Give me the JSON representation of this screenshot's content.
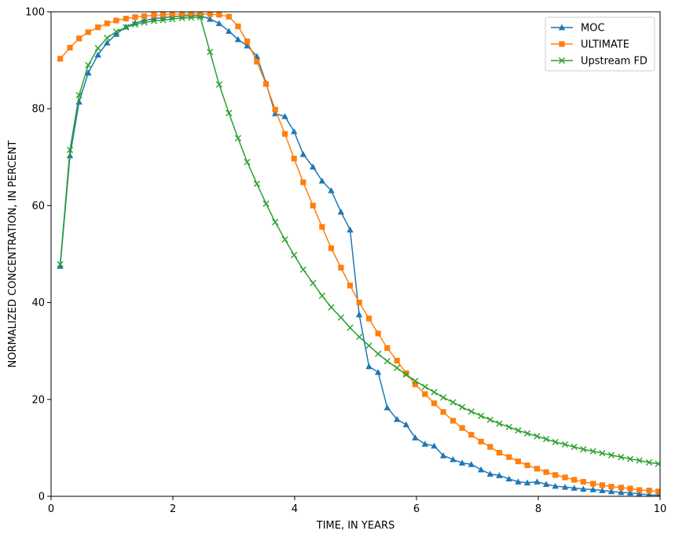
{
  "chart_data": {
    "type": "line",
    "xlabel": "TIME, IN YEARS",
    "ylabel": "NORMALIZED CONCENTRATION, IN PERCENT",
    "xlim": [
      0,
      10
    ],
    "ylim": [
      0,
      100
    ],
    "xticks": [
      0,
      2,
      4,
      6,
      8,
      10
    ],
    "yticks": [
      0,
      20,
      40,
      60,
      80,
      100
    ],
    "grid": false,
    "legend_position": "top-right",
    "series": [
      {
        "name": "MOC",
        "color": "#1f77b4",
        "marker": "triangle",
        "x": [
          0.15,
          0.31,
          0.46,
          0.61,
          0.77,
          0.92,
          1.07,
          1.23,
          1.38,
          1.53,
          1.69,
          1.84,
          1.99,
          2.15,
          2.3,
          2.45,
          2.61,
          2.76,
          2.92,
          3.07,
          3.22,
          3.38,
          3.53,
          3.68,
          3.84,
          3.99,
          4.14,
          4.3,
          4.45,
          4.6,
          4.76,
          4.91,
          5.06,
          5.22,
          5.37,
          5.52,
          5.68,
          5.83,
          5.98,
          6.14,
          6.29,
          6.44,
          6.6,
          6.75,
          6.9,
          7.06,
          7.21,
          7.36,
          7.52,
          7.67,
          7.82,
          7.98,
          8.13,
          8.28,
          8.44,
          8.59,
          8.74,
          8.9,
          9.05,
          9.2,
          9.36,
          9.51,
          9.66,
          9.82,
          9.97
        ],
        "y": [
          47.5,
          70.3,
          81.4,
          87.4,
          91.1,
          93.6,
          95.4,
          96.9,
          97.7,
          98.2,
          98.6,
          98.8,
          99.0,
          99.1,
          99.2,
          99.2,
          98.5,
          97.6,
          96.0,
          94.3,
          93.0,
          90.8,
          85.3,
          79.0,
          78.4,
          75.3,
          70.6,
          68.0,
          65.1,
          63.1,
          58.7,
          55.0,
          37.5,
          26.8,
          25.6,
          18.3,
          15.9,
          14.8,
          12.1,
          10.8,
          10.4,
          8.4,
          7.6,
          6.9,
          6.6,
          5.5,
          4.6,
          4.3,
          3.6,
          3.0,
          2.8,
          3.0,
          2.5,
          2.1,
          1.9,
          1.7,
          1.5,
          1.4,
          1.2,
          1.0,
          0.8,
          0.7,
          0.5,
          0.3,
          0.2
        ]
      },
      {
        "name": "ULTIMATE",
        "color": "#ff7f0e",
        "marker": "square",
        "x": [
          0.15,
          0.31,
          0.46,
          0.61,
          0.77,
          0.92,
          1.07,
          1.23,
          1.38,
          1.53,
          1.69,
          1.84,
          1.99,
          2.15,
          2.3,
          2.45,
          2.61,
          2.76,
          2.92,
          3.07,
          3.22,
          3.38,
          3.53,
          3.68,
          3.84,
          3.99,
          4.14,
          4.3,
          4.45,
          4.6,
          4.76,
          4.91,
          5.06,
          5.22,
          5.37,
          5.52,
          5.68,
          5.83,
          5.98,
          6.14,
          6.29,
          6.44,
          6.6,
          6.75,
          6.9,
          7.06,
          7.21,
          7.36,
          7.52,
          7.67,
          7.82,
          7.98,
          8.13,
          8.28,
          8.44,
          8.59,
          8.74,
          8.9,
          9.05,
          9.2,
          9.36,
          9.51,
          9.66,
          9.82,
          9.97
        ],
        "y": [
          90.3,
          92.6,
          94.5,
          95.8,
          96.8,
          97.6,
          98.2,
          98.6,
          98.9,
          99.1,
          99.3,
          99.4,
          99.5,
          99.5,
          99.6,
          99.6,
          99.5,
          99.4,
          99.0,
          97.0,
          93.9,
          89.7,
          85.1,
          79.8,
          74.8,
          69.7,
          64.8,
          60.0,
          55.6,
          51.2,
          47.2,
          43.5,
          40.0,
          36.7,
          33.6,
          30.6,
          28.0,
          25.4,
          23.1,
          21.1,
          19.2,
          17.4,
          15.6,
          14.1,
          12.7,
          11.3,
          10.2,
          9.0,
          8.1,
          7.2,
          6.4,
          5.7,
          5.0,
          4.4,
          3.9,
          3.4,
          3.0,
          2.6,
          2.3,
          2.0,
          1.8,
          1.6,
          1.3,
          1.2,
          1.0
        ]
      },
      {
        "name": "Upstream FD",
        "color": "#2ca02c",
        "marker": "x",
        "x": [
          0.15,
          0.31,
          0.46,
          0.61,
          0.77,
          0.92,
          1.07,
          1.23,
          1.38,
          1.53,
          1.69,
          1.84,
          1.99,
          2.15,
          2.3,
          2.45,
          2.61,
          2.76,
          2.92,
          3.07,
          3.22,
          3.38,
          3.53,
          3.68,
          3.84,
          3.99,
          4.14,
          4.3,
          4.45,
          4.6,
          4.76,
          4.91,
          5.06,
          5.22,
          5.37,
          5.52,
          5.68,
          5.83,
          5.98,
          6.14,
          6.29,
          6.44,
          6.6,
          6.75,
          6.9,
          7.06,
          7.21,
          7.36,
          7.52,
          7.67,
          7.82,
          7.98,
          8.13,
          8.28,
          8.44,
          8.59,
          8.74,
          8.9,
          9.05,
          9.2,
          9.36,
          9.51,
          9.66,
          9.82,
          9.97
        ],
        "y": [
          47.9,
          71.5,
          82.8,
          89.0,
          92.5,
          94.6,
          95.9,
          96.8,
          97.4,
          97.8,
          98.1,
          98.3,
          98.5,
          98.7,
          98.8,
          98.9,
          91.7,
          85.0,
          79.1,
          73.9,
          69.0,
          64.5,
          60.4,
          56.6,
          53.0,
          49.8,
          46.8,
          44.0,
          41.4,
          39.0,
          36.9,
          34.8,
          32.9,
          31.1,
          29.4,
          27.9,
          26.5,
          25.1,
          23.8,
          22.6,
          21.5,
          20.4,
          19.4,
          18.4,
          17.5,
          16.6,
          15.8,
          15.0,
          14.3,
          13.6,
          13.0,
          12.4,
          11.8,
          11.2,
          10.7,
          10.2,
          9.7,
          9.3,
          8.9,
          8.5,
          8.1,
          7.7,
          7.4,
          7.0,
          6.7
        ]
      }
    ]
  }
}
